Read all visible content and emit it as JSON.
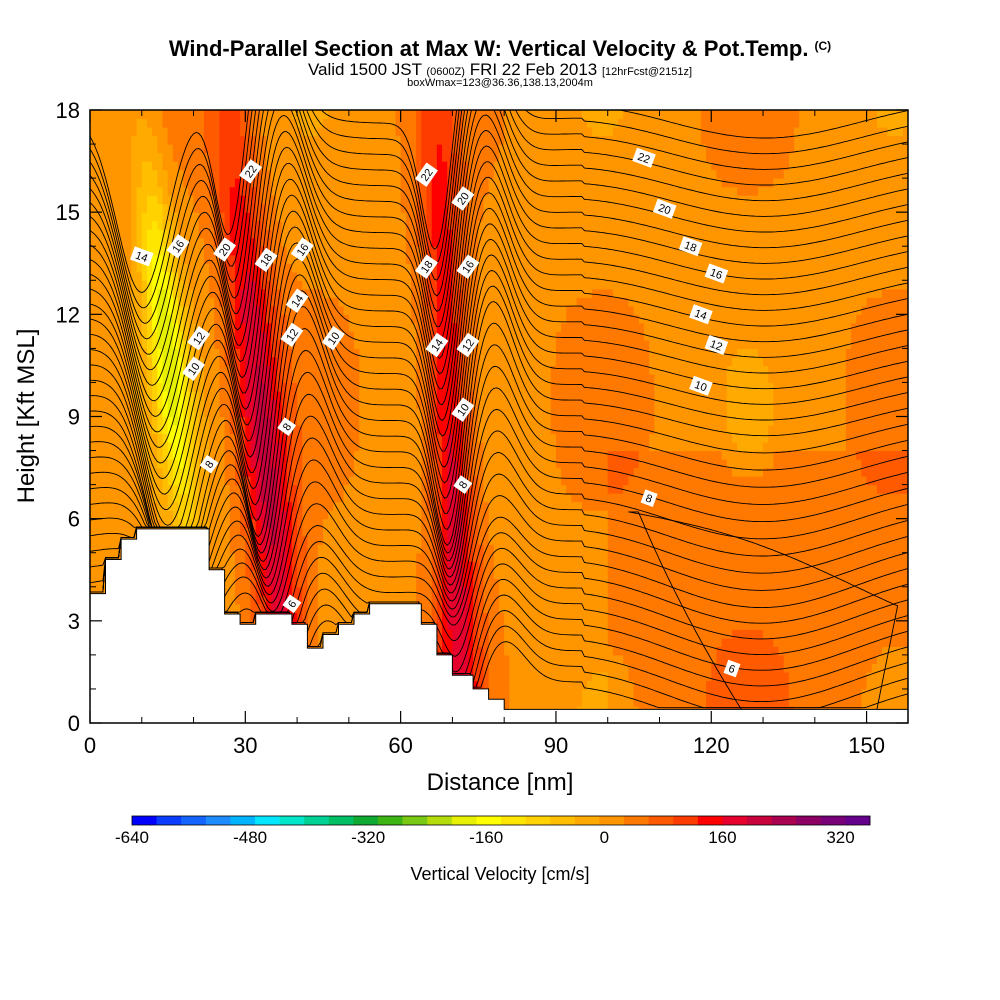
{
  "header": {
    "title": "Wind-Parallel Section at Max W: Vertical Velocity & Pot.Temp.",
    "copyright": "(C)",
    "valid_prefix": "Valid 1500 JST",
    "valid_utc": "(0600Z)",
    "valid_date": "FRI 22 Feb 2013",
    "forecast": "[12hrFcst@2151z]",
    "box_info": "boxWmax=123@36.36,138.13,2004m"
  },
  "chart_data": {
    "type": "heatmap",
    "xlabel": "Distance [nm]",
    "ylabel": "Height [Kft MSL]",
    "xlim": [
      0,
      158
    ],
    "ylim": [
      0,
      18
    ],
    "x_ticks": [
      0,
      30,
      60,
      90,
      120,
      150
    ],
    "y_ticks": [
      0,
      3,
      6,
      9,
      12,
      15,
      18
    ],
    "colorbar": {
      "label": "Vertical Velocity [cm/s]",
      "tick_labels": [
        "-640",
        "-480",
        "-320",
        "-160",
        "0",
        "160",
        "320"
      ],
      "tick_values": [
        -640,
        -480,
        -320,
        -160,
        0,
        160,
        320
      ],
      "range": [
        -640,
        360
      ],
      "colors": [
        "#0000ff",
        "#0a3cff",
        "#1464ff",
        "#1e8cff",
        "#00b4ff",
        "#00e6ff",
        "#00e6c8",
        "#00d296",
        "#00be64",
        "#10aa32",
        "#3cb414",
        "#78c814",
        "#b4dc0a",
        "#e6f000",
        "#ffff00",
        "#ffe600",
        "#ffd200",
        "#ffbe00",
        "#ffaa00",
        "#ff9600",
        "#ff7800",
        "#ff5a00",
        "#ff3c00",
        "#ff0000",
        "#e6002d",
        "#c8003c",
        "#aa0050",
        "#8c0064",
        "#780078",
        "#64008c"
      ]
    },
    "topography_kft": [
      [
        0,
        3.8
      ],
      [
        3,
        3.8
      ],
      [
        3,
        4.8
      ],
      [
        6,
        4.8
      ],
      [
        6,
        5.4
      ],
      [
        7,
        5.4
      ],
      [
        7,
        5.4
      ],
      [
        9,
        5.4
      ],
      [
        9,
        5.7
      ],
      [
        23,
        5.7
      ],
      [
        23,
        4.5
      ],
      [
        26,
        4.5
      ],
      [
        26,
        3.2
      ],
      [
        29,
        3.2
      ],
      [
        29,
        2.9
      ],
      [
        32,
        2.9
      ],
      [
        32,
        3.2
      ],
      [
        39,
        3.2
      ],
      [
        39,
        2.9
      ],
      [
        42,
        2.9
      ],
      [
        42,
        2.2
      ],
      [
        45,
        2.2
      ],
      [
        45,
        2.6
      ],
      [
        48,
        2.6
      ],
      [
        48,
        2.9
      ],
      [
        51,
        2.9
      ],
      [
        51,
        3.2
      ],
      [
        54,
        3.2
      ],
      [
        54,
        3.5
      ],
      [
        64,
        3.5
      ],
      [
        64,
        2.9
      ],
      [
        67,
        2.9
      ],
      [
        67,
        2.0
      ],
      [
        70,
        2.0
      ],
      [
        70,
        1.4
      ],
      [
        74,
        1.4
      ],
      [
        74,
        1.0
      ],
      [
        77,
        1.0
      ],
      [
        77,
        0.7
      ],
      [
        80,
        0.7
      ],
      [
        80,
        0.4
      ],
      [
        158,
        0.4
      ]
    ],
    "updrafts": [
      {
        "x_base": 39,
        "top_lean": -12,
        "width": 5,
        "w_max": 180
      },
      {
        "x_base": 72,
        "top_lean": -5,
        "width": 4.5,
        "w_max": 170
      }
    ],
    "downdrafts": [
      {
        "x_base": 23,
        "top_lean": -13,
        "width": 3.5,
        "w_min": -200
      }
    ],
    "theta_contours": {
      "levels_labeled": [
        6,
        8,
        10,
        12,
        14,
        16,
        18,
        20,
        22
      ],
      "labels": [
        {
          "text": "14",
          "x": 10,
          "y": 13.7
        },
        {
          "text": "16",
          "x": 17,
          "y": 14.0
        },
        {
          "text": "20",
          "x": 26,
          "y": 13.9
        },
        {
          "text": "18",
          "x": 34,
          "y": 13.6
        },
        {
          "text": "22",
          "x": 31,
          "y": 16.2
        },
        {
          "text": "16",
          "x": 41,
          "y": 13.9
        },
        {
          "text": "14",
          "x": 40,
          "y": 12.4
        },
        {
          "text": "12",
          "x": 39,
          "y": 11.4
        },
        {
          "text": "10",
          "x": 47,
          "y": 11.3
        },
        {
          "text": "12",
          "x": 21,
          "y": 11.3
        },
        {
          "text": "10",
          "x": 20,
          "y": 10.4
        },
        {
          "text": "8",
          "x": 38,
          "y": 8.7
        },
        {
          "text": "8",
          "x": 23,
          "y": 7.6
        },
        {
          "text": "6",
          "x": 39,
          "y": 3.5
        },
        {
          "text": "22",
          "x": 65,
          "y": 16.1
        },
        {
          "text": "20",
          "x": 72,
          "y": 15.4
        },
        {
          "text": "18",
          "x": 65,
          "y": 13.4
        },
        {
          "text": "16",
          "x": 73,
          "y": 13.4
        },
        {
          "text": "14",
          "x": 67,
          "y": 11.1
        },
        {
          "text": "12",
          "x": 73,
          "y": 11.1
        },
        {
          "text": "10",
          "x": 72,
          "y": 9.2
        },
        {
          "text": "8",
          "x": 72,
          "y": 7.0
        },
        {
          "text": "22",
          "x": 107,
          "y": 16.6
        },
        {
          "text": "20",
          "x": 111,
          "y": 15.1
        },
        {
          "text": "18",
          "x": 116,
          "y": 14.0
        },
        {
          "text": "16",
          "x": 121,
          "y": 13.2
        },
        {
          "text": "14",
          "x": 118,
          "y": 12.0
        },
        {
          "text": "12",
          "x": 121,
          "y": 11.1
        },
        {
          "text": "10",
          "x": 118,
          "y": 9.9
        },
        {
          "text": "8",
          "x": 108,
          "y": 6.6
        },
        {
          "text": "6",
          "x": 124,
          "y": 1.6
        }
      ]
    }
  }
}
